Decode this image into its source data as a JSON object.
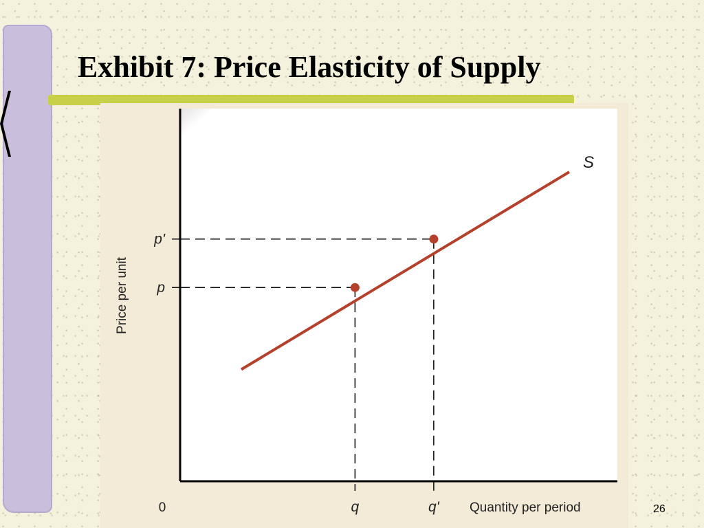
{
  "slide": {
    "title": "Exhibit 7: Price Elasticity of Supply",
    "page_number": "26"
  },
  "chart_data": {
    "type": "line",
    "title": "",
    "xlabel": "Quantity per period",
    "ylabel": "Price per unit",
    "origin_label": "0",
    "xlim": [
      0,
      100
    ],
    "ylim": [
      0,
      100
    ],
    "grid": false,
    "series": [
      {
        "name": "S",
        "color": "#b5402c",
        "x": [
          14,
          89
        ],
        "y": [
          30,
          83
        ]
      }
    ],
    "points": [
      {
        "label_x": "q",
        "label_y": "p",
        "x": 40,
        "y": 52
      },
      {
        "label_x": "q'",
        "label_y": "p'",
        "x": 58,
        "y": 65
      }
    ]
  }
}
